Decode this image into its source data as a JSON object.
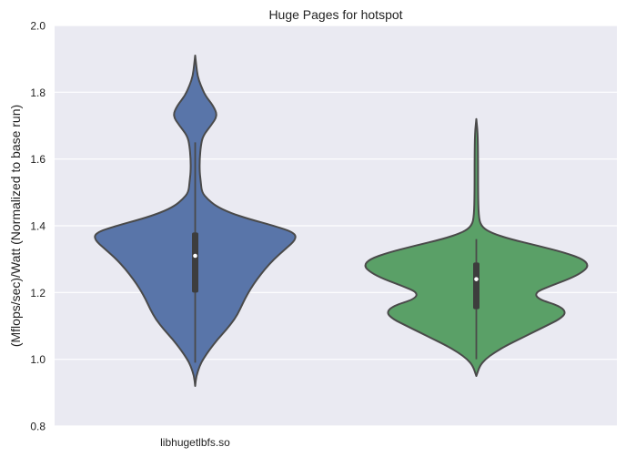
{
  "chart_data": {
    "type": "violin",
    "title": "Huge Pages for hotspot",
    "xlabel": "",
    "ylabel": "(Mflops/sec)/Watt (Normalized to base run)",
    "ylim": [
      0.8,
      2.0
    ],
    "yticks": [
      "0.8",
      "1.0",
      "1.2",
      "1.4",
      "1.6",
      "1.8",
      "2.0"
    ],
    "categories": [
      "libhugetlbfs.so",
      ""
    ],
    "grid": true,
    "background": "#eaeaf2",
    "violins": [
      {
        "category": "libhugetlbfs.so",
        "color": "#5975a9",
        "min": 0.92,
        "max": 1.91,
        "whisker": [
          0.99,
          1.65
        ],
        "q1": 1.2,
        "median": 1.31,
        "q3": 1.38,
        "density_profile": [
          [
            0.92,
            0.0
          ],
          [
            0.95,
            0.01
          ],
          [
            0.98,
            0.04
          ],
          [
            1.0,
            0.07
          ],
          [
            1.03,
            0.13
          ],
          [
            1.06,
            0.2
          ],
          [
            1.09,
            0.28
          ],
          [
            1.12,
            0.35
          ],
          [
            1.15,
            0.4
          ],
          [
            1.18,
            0.44
          ],
          [
            1.21,
            0.49
          ],
          [
            1.24,
            0.55
          ],
          [
            1.27,
            0.62
          ],
          [
            1.3,
            0.7
          ],
          [
            1.33,
            0.8
          ],
          [
            1.36,
            0.9
          ],
          [
            1.38,
            0.88
          ],
          [
            1.4,
            0.7
          ],
          [
            1.42,
            0.48
          ],
          [
            1.44,
            0.3
          ],
          [
            1.46,
            0.18
          ],
          [
            1.48,
            0.11
          ],
          [
            1.5,
            0.06
          ],
          [
            1.53,
            0.05
          ],
          [
            1.56,
            0.04
          ],
          [
            1.6,
            0.04
          ],
          [
            1.64,
            0.05
          ],
          [
            1.67,
            0.07
          ],
          [
            1.7,
            0.14
          ],
          [
            1.73,
            0.2
          ],
          [
            1.76,
            0.16
          ],
          [
            1.79,
            0.09
          ],
          [
            1.82,
            0.05
          ],
          [
            1.85,
            0.02
          ],
          [
            1.88,
            0.01
          ],
          [
            1.91,
            0.0
          ]
        ]
      },
      {
        "category": "",
        "color": "#5aa067",
        "min": 0.95,
        "max": 1.72,
        "whisker": [
          1.0,
          1.36
        ],
        "q1": 1.15,
        "median": 1.24,
        "q3": 1.29,
        "density_profile": [
          [
            0.95,
            0.0
          ],
          [
            0.98,
            0.03
          ],
          [
            1.0,
            0.08
          ],
          [
            1.02,
            0.16
          ],
          [
            1.04,
            0.26
          ],
          [
            1.06,
            0.38
          ],
          [
            1.08,
            0.5
          ],
          [
            1.1,
            0.62
          ],
          [
            1.12,
            0.74
          ],
          [
            1.14,
            0.8
          ],
          [
            1.16,
            0.74
          ],
          [
            1.18,
            0.55
          ],
          [
            1.2,
            0.52
          ],
          [
            1.22,
            0.66
          ],
          [
            1.24,
            0.82
          ],
          [
            1.26,
            0.94
          ],
          [
            1.28,
            1.0
          ],
          [
            1.3,
            0.95
          ],
          [
            1.32,
            0.78
          ],
          [
            1.34,
            0.55
          ],
          [
            1.36,
            0.3
          ],
          [
            1.38,
            0.12
          ],
          [
            1.4,
            0.04
          ],
          [
            1.43,
            0.02
          ],
          [
            1.5,
            0.015
          ],
          [
            1.6,
            0.015
          ],
          [
            1.68,
            0.012
          ],
          [
            1.72,
            0.0
          ]
        ]
      }
    ]
  }
}
